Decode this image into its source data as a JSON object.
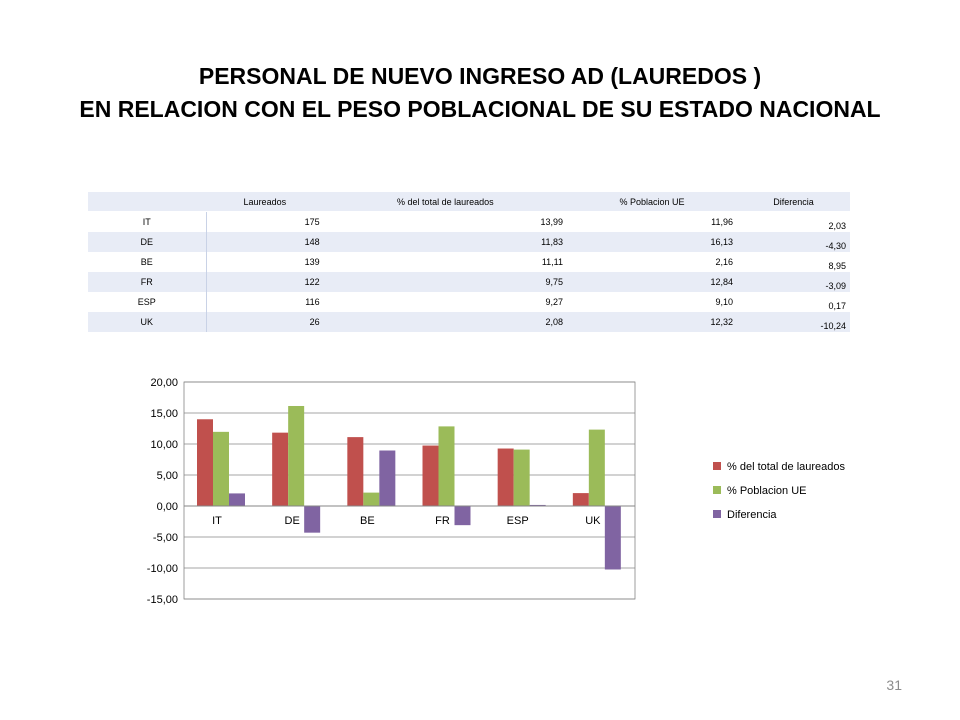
{
  "title": {
    "line1": "PERSONAL DE NUEVO INGRESO AD (LAUREDOS )",
    "line2": "EN RELACION CON EL PESO POBLACIONAL DE SU ESTADO NACIONAL"
  },
  "table": {
    "headers": [
      "",
      "Laureados",
      "% del total de laureados",
      "% Poblacion UE",
      "Diferencia"
    ],
    "rows": [
      [
        "IT",
        "175",
        "13,99",
        "11,96",
        "2,03"
      ],
      [
        "DE",
        "148",
        "11,83",
        "16,13",
        "-4,30"
      ],
      [
        "BE",
        "139",
        "11,11",
        "2,16",
        "8,95"
      ],
      [
        "FR",
        "122",
        "9,75",
        "12,84",
        "-3,09"
      ],
      [
        "ESP",
        "116",
        "9,27",
        "9,10",
        "0,17"
      ],
      [
        "UK",
        "26",
        "2,08",
        "12,32",
        "-10,24"
      ]
    ]
  },
  "chart_data": {
    "type": "bar",
    "categories": [
      "IT",
      "DE",
      "BE",
      "FR",
      "ESP",
      "UK"
    ],
    "series": [
      {
        "name": "% del total de laureados",
        "color": "#c0504d",
        "values": [
          13.99,
          11.83,
          11.11,
          9.75,
          9.27,
          2.08
        ]
      },
      {
        "name": "% Poblacion UE",
        "color": "#9bbb59",
        "values": [
          11.96,
          16.13,
          2.16,
          12.84,
          9.1,
          12.32
        ]
      },
      {
        "name": "Diferencia",
        "color": "#8064a2",
        "values": [
          2.03,
          -4.3,
          8.95,
          -3.09,
          0.17,
          -10.24
        ]
      }
    ],
    "ylim": [
      -15,
      20
    ],
    "yticks": [
      "20,00",
      "15,00",
      "10,00",
      "5,00",
      "0,00",
      "-5,00",
      "-10,00",
      "-15,00"
    ],
    "grid": true,
    "legend": "right"
  },
  "page_number": "31"
}
